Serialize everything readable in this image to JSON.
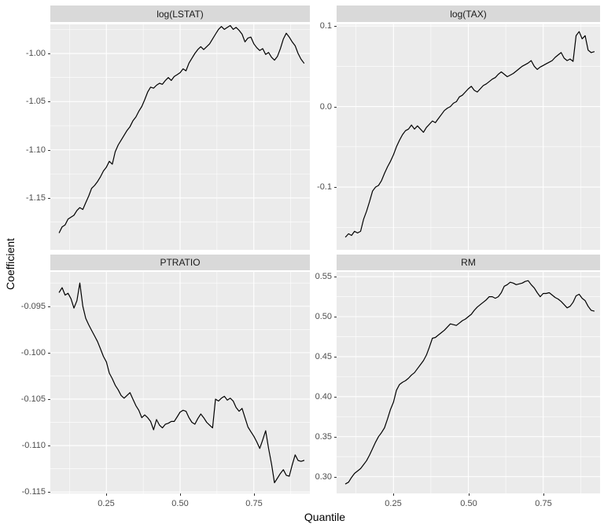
{
  "figure": {
    "background": "#FFFFFF",
    "panel_bg": "#EBEBEB",
    "strip_bg": "#D9D9D9",
    "grid_color": "#FFFFFF",
    "line_color": "#000000",
    "axis_text_color": "#4D4D4D",
    "strip_text_color": "#1A1A1A",
    "tick_color": "#333333"
  },
  "chart_data": {
    "type": "line",
    "layout": "facet-grid-2x2",
    "xlabel": "Quantile",
    "ylabel": "Coefficient",
    "legend": "none",
    "grid": "on",
    "xlim": [
      0.06,
      0.94
    ],
    "xticks": [
      0.25,
      0.5,
      0.75
    ],
    "xtick_labels": [
      "0.25",
      "0.50",
      "0.75"
    ],
    "xminor": [
      0.125,
      0.375,
      0.625,
      0.875
    ],
    "x": [
      0.09,
      0.1,
      0.11,
      0.12,
      0.13,
      0.14,
      0.15,
      0.16,
      0.17,
      0.18,
      0.19,
      0.2,
      0.21,
      0.22,
      0.23,
      0.24,
      0.25,
      0.26,
      0.27,
      0.28,
      0.29,
      0.3,
      0.31,
      0.32,
      0.33,
      0.34,
      0.35,
      0.36,
      0.37,
      0.38,
      0.39,
      0.4,
      0.41,
      0.42,
      0.43,
      0.44,
      0.45,
      0.46,
      0.47,
      0.48,
      0.49,
      0.5,
      0.51,
      0.52,
      0.53,
      0.54,
      0.55,
      0.56,
      0.57,
      0.58,
      0.59,
      0.6,
      0.61,
      0.62,
      0.63,
      0.64,
      0.65,
      0.66,
      0.67,
      0.68,
      0.69,
      0.7,
      0.71,
      0.72,
      0.73,
      0.74,
      0.75,
      0.76,
      0.77,
      0.78,
      0.79,
      0.8,
      0.81,
      0.82,
      0.83,
      0.84,
      0.85,
      0.86,
      0.87,
      0.88,
      0.89,
      0.9,
      0.91,
      0.92
    ],
    "panels": [
      {
        "title": "log(LSTAT)",
        "id": "log-lstat",
        "ylim": [
          -1.2039,
          -0.9698
        ],
        "yticks": [
          -1.0,
          -1.05,
          -1.1,
          -1.15
        ],
        "ytick_labels": [
          "-1.00",
          "-1.05",
          "-1.10",
          "-1.15"
        ],
        "yminor": [
          -0.975,
          -1.025,
          -1.075,
          -1.125,
          -1.175
        ],
        "y": [
          -1.186,
          -1.18,
          -1.178,
          -1.172,
          -1.17,
          -1.168,
          -1.163,
          -1.16,
          -1.162,
          -1.155,
          -1.148,
          -1.14,
          -1.137,
          -1.133,
          -1.128,
          -1.122,
          -1.118,
          -1.112,
          -1.115,
          -1.102,
          -1.095,
          -1.09,
          -1.085,
          -1.08,
          -1.076,
          -1.07,
          -1.066,
          -1.06,
          -1.055,
          -1.048,
          -1.04,
          -1.035,
          -1.036,
          -1.033,
          -1.031,
          -1.032,
          -1.028,
          -1.025,
          -1.028,
          -1.024,
          -1.022,
          -1.02,
          -1.016,
          -1.018,
          -1.01,
          -1.005,
          -1.0,
          -0.996,
          -0.993,
          -0.996,
          -0.993,
          -0.99,
          -0.985,
          -0.98,
          -0.975,
          -0.972,
          -0.975,
          -0.973,
          -0.971,
          -0.975,
          -0.973,
          -0.976,
          -0.98,
          -0.988,
          -0.984,
          -0.983,
          -0.99,
          -0.994,
          -0.997,
          -0.995,
          -1.001,
          -0.999,
          -1.004,
          -1.007,
          -1.003,
          -0.995,
          -0.985,
          -0.979,
          -0.983,
          -0.988,
          -0.992,
          -1.0,
          -1.006,
          -1.01
        ]
      },
      {
        "title": "log(TAX)",
        "id": "log-tax",
        "ylim": [
          -0.178,
          0.102
        ],
        "yticks": [
          0.1,
          0.0,
          -0.1
        ],
        "ytick_labels": [
          "0.1",
          "0.0",
          "-0.1"
        ],
        "yminor": [
          0.05,
          -0.05,
          -0.15
        ],
        "y": [
          -0.162,
          -0.158,
          -0.16,
          -0.155,
          -0.157,
          -0.155,
          -0.14,
          -0.13,
          -0.118,
          -0.105,
          -0.1,
          -0.098,
          -0.092,
          -0.083,
          -0.075,
          -0.068,
          -0.06,
          -0.05,
          -0.042,
          -0.035,
          -0.03,
          -0.028,
          -0.023,
          -0.028,
          -0.024,
          -0.028,
          -0.032,
          -0.026,
          -0.022,
          -0.018,
          -0.02,
          -0.015,
          -0.01,
          -0.005,
          -0.002,
          0.0,
          0.004,
          0.006,
          0.012,
          0.014,
          0.018,
          0.022,
          0.025,
          0.02,
          0.018,
          0.022,
          0.026,
          0.028,
          0.031,
          0.034,
          0.036,
          0.04,
          0.043,
          0.04,
          0.037,
          0.039,
          0.041,
          0.044,
          0.047,
          0.05,
          0.052,
          0.054,
          0.057,
          0.05,
          0.046,
          0.049,
          0.051,
          0.053,
          0.055,
          0.057,
          0.061,
          0.064,
          0.067,
          0.06,
          0.057,
          0.059,
          0.056,
          0.088,
          0.093,
          0.084,
          0.088,
          0.07,
          0.067,
          0.068
        ]
      },
      {
        "title": "PTRATIO",
        "id": "ptratio",
        "ylim": [
          -0.11515,
          -0.0913
        ],
        "yticks": [
          -0.095,
          -0.1,
          -0.105,
          -0.11,
          -0.115
        ],
        "ytick_labels": [
          "-0.095",
          "-0.100",
          "-0.105",
          "-0.110",
          "-0.115"
        ],
        "yminor": [
          -0.0925,
          -0.0975,
          -0.1025,
          -0.1075,
          -0.1125
        ],
        "y": [
          -0.0935,
          -0.093,
          -0.0938,
          -0.0936,
          -0.0942,
          -0.0952,
          -0.0944,
          -0.0925,
          -0.095,
          -0.0963,
          -0.097,
          -0.0976,
          -0.0982,
          -0.0988,
          -0.0996,
          -0.1004,
          -0.101,
          -0.1022,
          -0.1028,
          -0.1035,
          -0.104,
          -0.1046,
          -0.1049,
          -0.1046,
          -0.1043,
          -0.105,
          -0.1057,
          -0.1062,
          -0.107,
          -0.1067,
          -0.107,
          -0.1074,
          -0.1083,
          -0.1072,
          -0.1078,
          -0.1081,
          -0.1077,
          -0.1076,
          -0.1074,
          -0.1074,
          -0.1069,
          -0.1064,
          -0.1062,
          -0.1063,
          -0.107,
          -0.1075,
          -0.1077,
          -0.1071,
          -0.1066,
          -0.107,
          -0.1075,
          -0.1078,
          -0.1081,
          -0.105,
          -0.1052,
          -0.1049,
          -0.1047,
          -0.1051,
          -0.1049,
          -0.1052,
          -0.1059,
          -0.1063,
          -0.106,
          -0.107,
          -0.108,
          -0.1085,
          -0.109,
          -0.1096,
          -0.1103,
          -0.1094,
          -0.1084,
          -0.1103,
          -0.112,
          -0.114,
          -0.1135,
          -0.113,
          -0.1126,
          -0.1132,
          -0.1133,
          -0.1121,
          -0.111,
          -0.1116,
          -0.1117,
          -0.1116
        ]
      },
      {
        "title": "RM",
        "id": "rm",
        "ylim": [
          0.279,
          0.556
        ],
        "yticks": [
          0.55,
          0.5,
          0.45,
          0.4,
          0.35,
          0.3
        ],
        "ytick_labels": [
          "0.55",
          "0.50",
          "0.45",
          "0.40",
          "0.35",
          "0.30"
        ],
        "yminor": [
          0.525,
          0.475,
          0.425,
          0.375,
          0.325
        ],
        "y": [
          0.291,
          0.293,
          0.299,
          0.304,
          0.307,
          0.31,
          0.315,
          0.32,
          0.327,
          0.335,
          0.343,
          0.35,
          0.355,
          0.361,
          0.372,
          0.384,
          0.393,
          0.408,
          0.415,
          0.418,
          0.42,
          0.423,
          0.427,
          0.43,
          0.435,
          0.44,
          0.445,
          0.452,
          0.462,
          0.473,
          0.474,
          0.477,
          0.48,
          0.483,
          0.487,
          0.491,
          0.49,
          0.489,
          0.492,
          0.495,
          0.497,
          0.5,
          0.503,
          0.508,
          0.512,
          0.515,
          0.518,
          0.521,
          0.525,
          0.525,
          0.523,
          0.525,
          0.53,
          0.538,
          0.54,
          0.543,
          0.542,
          0.54,
          0.541,
          0.542,
          0.544,
          0.545,
          0.54,
          0.536,
          0.53,
          0.525,
          0.529,
          0.529,
          0.53,
          0.527,
          0.524,
          0.522,
          0.519,
          0.515,
          0.511,
          0.513,
          0.518,
          0.526,
          0.528,
          0.523,
          0.52,
          0.513,
          0.508,
          0.507
        ]
      }
    ]
  }
}
